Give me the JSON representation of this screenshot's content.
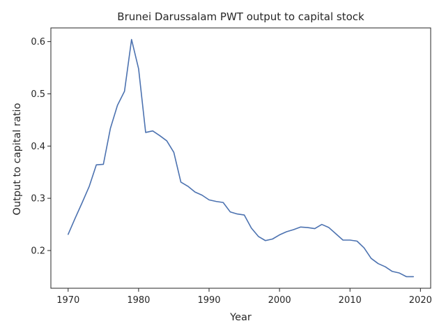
{
  "chart_data": {
    "type": "line",
    "title": "Brunei Darussalam PWT output to capital stock",
    "xlabel": "Year",
    "ylabel": "Output to capital ratio",
    "xlim": [
      1967.55,
      2021.45
    ],
    "ylim": [
      0.1278,
      0.6262
    ],
    "xticks": [
      1970,
      1980,
      1990,
      2000,
      2010,
      2020
    ],
    "yticks": [
      0.2,
      0.3,
      0.4,
      0.5,
      0.6
    ],
    "xtick_labels": [
      "1970",
      "1980",
      "1990",
      "2000",
      "2010",
      "2020"
    ],
    "ytick_labels": [
      "0.2",
      "0.3",
      "0.4",
      "0.5",
      "0.6"
    ],
    "grid": false,
    "line_color": "#4c72b0",
    "series": [
      {
        "x": [
          1970,
          1971,
          1972,
          1973,
          1974,
          1975,
          1976,
          1977,
          1978,
          1979,
          1980,
          1981,
          1982,
          1983,
          1984,
          1985,
          1986,
          1987,
          1988,
          1989,
          1990,
          1991,
          1992,
          1993,
          1994,
          1995,
          1996,
          1997,
          1998,
          1999,
          2000,
          2001,
          2002,
          2003,
          2004,
          2005,
          2006,
          2007,
          2008,
          2009,
          2010,
          2011,
          2012,
          2013,
          2014,
          2015,
          2016,
          2017,
          2018,
          2019
        ],
        "values": [
          0.231,
          0.262,
          0.292,
          0.323,
          0.364,
          0.365,
          0.434,
          0.478,
          0.505,
          0.604,
          0.548,
          0.426,
          0.429,
          0.42,
          0.41,
          0.388,
          0.331,
          0.323,
          0.312,
          0.306,
          0.297,
          0.294,
          0.292,
          0.274,
          0.27,
          0.268,
          0.243,
          0.227,
          0.219,
          0.222,
          0.23,
          0.236,
          0.24,
          0.245,
          0.244,
          0.242,
          0.25,
          0.244,
          0.232,
          0.22,
          0.22,
          0.218,
          0.205,
          0.185,
          0.175,
          0.169,
          0.16,
          0.157,
          0.15,
          0.15
        ]
      }
    ]
  }
}
